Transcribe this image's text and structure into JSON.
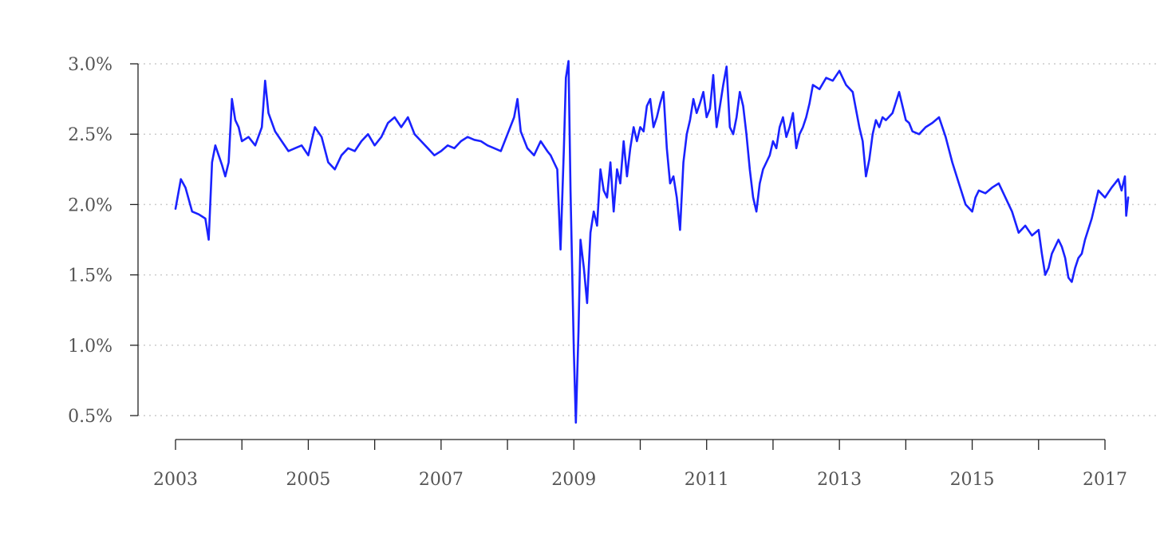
{
  "chart_data": {
    "type": "line",
    "title": "",
    "xlabel": "",
    "ylabel": "",
    "x_range": [
      2003,
      2017.4
    ],
    "x_ticks": [
      2003,
      2004,
      2005,
      2006,
      2007,
      2008,
      2009,
      2010,
      2011,
      2012,
      2013,
      2014,
      2015,
      2016,
      2017
    ],
    "x_tick_labels": [
      "2003",
      "",
      "2005",
      "",
      "2007",
      "",
      "2009",
      "",
      "2011",
      "",
      "2013",
      "",
      "2015",
      "",
      "2017"
    ],
    "ylim": [
      0.5,
      3.0
    ],
    "y_ticks": [
      0.5,
      1.0,
      1.5,
      2.0,
      2.5,
      3.0
    ],
    "y_tick_labels": [
      "0.5%",
      "1.0%",
      "1.5%",
      "2.0%",
      "2.5%",
      "3.0%"
    ],
    "grid": "horizontal dotted",
    "legend": "none",
    "series": [
      {
        "color": "#1a22ff",
        "x": [
          2003.0,
          2003.08,
          2003.15,
          2003.25,
          2003.35,
          2003.45,
          2003.5,
          2003.55,
          2003.6,
          2003.65,
          2003.7,
          2003.75,
          2003.8,
          2003.85,
          2003.9,
          2003.95,
          2004.0,
          2004.1,
          2004.2,
          2004.3,
          2004.35,
          2004.4,
          2004.5,
          2004.6,
          2004.7,
          2004.8,
          2004.9,
          2005.0,
          2005.1,
          2005.2,
          2005.3,
          2005.4,
          2005.5,
          2005.6,
          2005.7,
          2005.8,
          2005.9,
          2006.0,
          2006.1,
          2006.2,
          2006.3,
          2006.4,
          2006.5,
          2006.6,
          2006.7,
          2006.8,
          2006.9,
          2007.0,
          2007.1,
          2007.2,
          2007.3,
          2007.4,
          2007.5,
          2007.6,
          2007.7,
          2007.8,
          2007.9,
          2008.0,
          2008.1,
          2008.15,
          2008.2,
          2008.3,
          2008.4,
          2008.5,
          2008.6,
          2008.65,
          2008.7,
          2008.75,
          2008.8,
          2008.85,
          2008.88,
          2008.92,
          2008.95,
          2009.0,
          2009.03,
          2009.07,
          2009.1,
          2009.15,
          2009.2,
          2009.25,
          2009.3,
          2009.35,
          2009.4,
          2009.45,
          2009.5,
          2009.55,
          2009.6,
          2009.65,
          2009.7,
          2009.75,
          2009.8,
          2009.85,
          2009.9,
          2009.95,
          2010.0,
          2010.05,
          2010.1,
          2010.15,
          2010.2,
          2010.25,
          2010.3,
          2010.35,
          2010.4,
          2010.45,
          2010.5,
          2010.55,
          2010.6,
          2010.65,
          2010.7,
          2010.75,
          2010.8,
          2010.85,
          2010.9,
          2010.95,
          2011.0,
          2011.05,
          2011.1,
          2011.15,
          2011.2,
          2011.25,
          2011.3,
          2011.35,
          2011.4,
          2011.45,
          2011.5,
          2011.55,
          2011.6,
          2011.65,
          2011.7,
          2011.75,
          2011.8,
          2011.85,
          2011.9,
          2011.95,
          2012.0,
          2012.05,
          2012.1,
          2012.15,
          2012.2,
          2012.25,
          2012.3,
          2012.35,
          2012.4,
          2012.45,
          2012.5,
          2012.55,
          2012.6,
          2012.7,
          2012.8,
          2012.9,
          2013.0,
          2013.1,
          2013.2,
          2013.3,
          2013.35,
          2013.4,
          2013.45,
          2013.5,
          2013.55,
          2013.6,
          2013.65,
          2013.7,
          2013.8,
          2013.9,
          2014.0,
          2014.05,
          2014.1,
          2014.2,
          2014.3,
          2014.4,
          2014.5,
          2014.6,
          2014.7,
          2014.8,
          2014.9,
          2015.0,
          2015.05,
          2015.1,
          2015.2,
          2015.3,
          2015.4,
          2015.5,
          2015.6,
          2015.7,
          2015.8,
          2015.9,
          2016.0,
          2016.05,
          2016.1,
          2016.15,
          2016.2,
          2016.3,
          2016.35,
          2016.4,
          2016.45,
          2016.5,
          2016.55,
          2016.6,
          2016.65,
          2016.7,
          2016.8,
          2016.9,
          2017.0,
          2017.1,
          2017.15,
          2017.2,
          2017.25,
          2017.3,
          2017.32,
          2017.35
        ],
        "y": [
          1.97,
          2.18,
          2.12,
          1.95,
          1.93,
          1.9,
          1.75,
          2.3,
          2.42,
          2.35,
          2.28,
          2.2,
          2.3,
          2.75,
          2.6,
          2.55,
          2.45,
          2.48,
          2.42,
          2.55,
          2.88,
          2.65,
          2.52,
          2.45,
          2.38,
          2.4,
          2.42,
          2.35,
          2.55,
          2.48,
          2.3,
          2.25,
          2.35,
          2.4,
          2.38,
          2.45,
          2.5,
          2.42,
          2.48,
          2.58,
          2.62,
          2.55,
          2.62,
          2.5,
          2.45,
          2.4,
          2.35,
          2.38,
          2.42,
          2.4,
          2.45,
          2.48,
          2.46,
          2.45,
          2.42,
          2.4,
          2.38,
          2.5,
          2.62,
          2.75,
          2.52,
          2.4,
          2.35,
          2.45,
          2.38,
          2.35,
          2.3,
          2.25,
          1.68,
          2.4,
          2.9,
          3.02,
          2.1,
          0.95,
          0.45,
          1.1,
          1.75,
          1.55,
          1.3,
          1.8,
          1.95,
          1.85,
          2.25,
          2.1,
          2.05,
          2.3,
          1.95,
          2.25,
          2.15,
          2.45,
          2.2,
          2.4,
          2.55,
          2.45,
          2.55,
          2.52,
          2.7,
          2.75,
          2.55,
          2.62,
          2.72,
          2.8,
          2.4,
          2.15,
          2.2,
          2.05,
          1.82,
          2.3,
          2.5,
          2.6,
          2.75,
          2.65,
          2.72,
          2.8,
          2.62,
          2.68,
          2.92,
          2.55,
          2.7,
          2.85,
          2.98,
          2.55,
          2.5,
          2.62,
          2.8,
          2.7,
          2.5,
          2.25,
          2.05,
          1.95,
          2.15,
          2.25,
          2.3,
          2.35,
          2.45,
          2.4,
          2.55,
          2.62,
          2.48,
          2.55,
          2.65,
          2.4,
          2.5,
          2.55,
          2.62,
          2.72,
          2.85,
          2.82,
          2.9,
          2.88,
          2.95,
          2.85,
          2.8,
          2.55,
          2.45,
          2.2,
          2.32,
          2.5,
          2.6,
          2.55,
          2.62,
          2.6,
          2.65,
          2.8,
          2.6,
          2.58,
          2.52,
          2.5,
          2.55,
          2.58,
          2.62,
          2.48,
          2.3,
          2.15,
          2.0,
          1.95,
          2.05,
          2.1,
          2.08,
          2.12,
          2.15,
          2.05,
          1.95,
          1.8,
          1.85,
          1.78,
          1.82,
          1.65,
          1.5,
          1.55,
          1.65,
          1.75,
          1.7,
          1.62,
          1.48,
          1.45,
          1.55,
          1.62,
          1.65,
          1.75,
          1.9,
          2.1,
          2.05,
          2.12,
          2.15,
          2.18,
          2.1,
          2.2,
          1.92,
          2.05
        ]
      }
    ]
  }
}
